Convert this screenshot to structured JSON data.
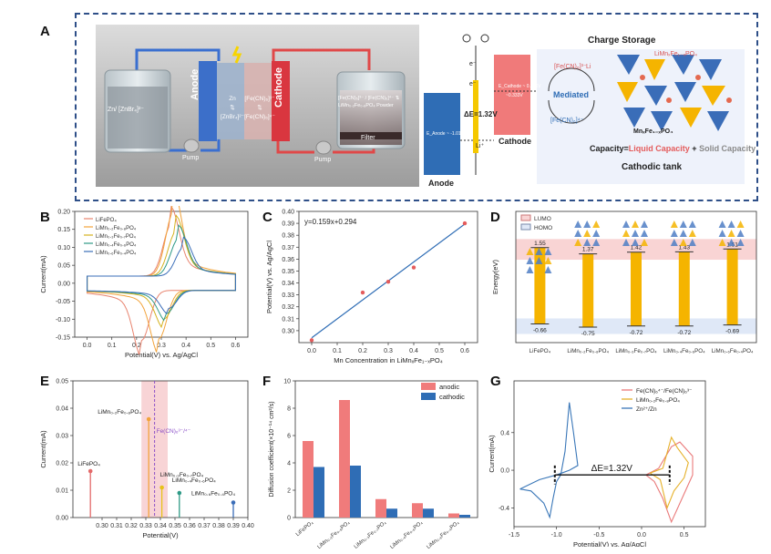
{
  "letters": {
    "a": "A",
    "b": "B",
    "c": "C",
    "d": "D",
    "e": "E",
    "f": "F",
    "g": "G"
  },
  "panel_a": {
    "left": {
      "anode_tank_label": "Zn/ [ZnBr₄]²⁻",
      "anode": "Anode",
      "cathode": "Cathode",
      "anode_membrane": "Zn\n⇅\n[ZnBr₄]²⁻",
      "cathode_membrane": "[Fe(CN)₆]³⁻\n⇅\n[Fe(CN)₆]⁴⁻",
      "tank_right_text": "[Fe(CN)₆]³⁻ / [Fe(CN)₆]⁴⁻ ⇅ LiMn₀.₂Fe₀.₈PO₄ Powder",
      "filter": "Filter",
      "pump_left": "Pump",
      "pump_right": "Pump"
    },
    "right": {
      "title": "Charge Storage",
      "anode": "Anode",
      "cathode": "Cathode",
      "e_anode": "E_Anode ~ -1.01V",
      "e_cathode1": "E_Cathode ~ 0.316V",
      "e_cathode2": "~0.333V",
      "delta_e": "ΔE=1.32V",
      "e_minus_1": "e⁻",
      "e_minus_2": "e⁻",
      "li_plus": "Li⁺",
      "li_label": "Li",
      "ferri": "[Fe(CN)₆]³⁻",
      "ferro": "[Fe(CN)₆]⁴⁻",
      "mediated": "Mediated",
      "lmfp_top": "LiMnₓFe₁₋ₓPO₄",
      "lmfp_bottom": "MnₓFe₁₋ₓPO₄",
      "capacity_prefix": "Capacity=",
      "capacity_liquid": "Liquid Capacity",
      "capacity_plus": " + ",
      "capacity_solid": "Solid Capacity",
      "tank_caption": "Cathodic tank",
      "colors": {
        "anode": "#2f6db5",
        "cathode": "#f07a7a",
        "mediated_bg": "#eef2fb",
        "frame": "#2e4f88"
      }
    }
  },
  "chart_data": [
    {
      "panel": "B",
      "type": "line",
      "xlabel": "Potential(V) vs. Ag/AgCl",
      "ylabel": "Current(mA)",
      "xlim": [
        -0.05,
        0.65
      ],
      "ylim": [
        -0.15,
        0.2
      ],
      "xticks": [
        "0.0",
        "0.1",
        "0.2",
        "0.3",
        "0.4",
        "0.5",
        "0.6"
      ],
      "yticks": [
        "-0.15",
        "-0.10",
        "-0.05",
        "0.00",
        "0.05",
        "0.10",
        "0.15",
        "0.20"
      ],
      "legend": [
        "LiFePO₄",
        "LiMn₀.₂Fe₀.₈PO₄",
        "LiMn₀.₃Fe₀.₇PO₄",
        "LiMn₀.₄Fe₀.₆PO₄",
        "LiMn₀.₆Fe₀.₄PO₄"
      ],
      "series": [
        {
          "name": "LiFePO₄",
          "color": "#e8836e",
          "anodic_peak": [
            0.34,
            0.143
          ],
          "cathodic_peak": [
            0.22,
            -0.14
          ]
        },
        {
          "name": "LiMn₀.₂Fe₀.₈PO₄",
          "color": "#f2a33a",
          "anodic_peak": [
            0.35,
            0.18
          ],
          "cathodic_peak": [
            0.29,
            -0.135
          ]
        },
        {
          "name": "LiMn₀.₃Fe₀.₇PO₄",
          "color": "#d4b21f",
          "anodic_peak": [
            0.36,
            0.125
          ],
          "cathodic_peak": [
            0.31,
            -0.08
          ]
        },
        {
          "name": "LiMn₀.₄Fe₀.₆PO₄",
          "color": "#2e9a86",
          "anodic_peak": [
            0.37,
            0.105
          ],
          "cathodic_peak": [
            0.32,
            -0.065
          ]
        },
        {
          "name": "LiMn₀.₆Fe₀.₄PO₄",
          "color": "#3a6db8",
          "anodic_peak": [
            0.39,
            0.08
          ],
          "cathodic_peak": [
            0.33,
            -0.05
          ]
        }
      ]
    },
    {
      "panel": "C",
      "type": "scatter",
      "xlabel": "Mn Concentration in LiMnₓFe₁₋ₓPO₄",
      "ylabel": "Potential(V) vs. Ag/AgCl",
      "xlim": [
        -0.05,
        0.65
      ],
      "ylim": [
        0.29,
        0.4
      ],
      "xticks": [
        "0.0",
        "0.1",
        "0.2",
        "0.3",
        "0.4",
        "0.5",
        "0.6"
      ],
      "yticks": [
        "0.30",
        "0.31",
        "0.32",
        "0.33",
        "0.34",
        "0.35",
        "0.36",
        "0.37",
        "0.38",
        "0.39",
        "0.40"
      ],
      "annotation": "y=0.159x+0.294",
      "x": [
        0,
        0.2,
        0.3,
        0.4,
        0.6
      ],
      "y": [
        0.292,
        0.332,
        0.341,
        0.353,
        0.39
      ],
      "fit": {
        "slope": 0.159,
        "intercept": 0.294
      },
      "colors": {
        "points": "#e45c5c",
        "line": "#2f6db5"
      }
    },
    {
      "panel": "D",
      "type": "bar",
      "ylabel": "Energy(eV)",
      "legend": [
        "LUMO",
        "HOMO"
      ],
      "categories": [
        "LiFePO₄",
        "LiMn₀.₂Fe₀.₈PO₄",
        "LiMn₀.₃Fe₀.₇PO₄",
        "LiMn₀.₄Fe₀.₆PO₄",
        "LiMn₀.₆Fe₀.₄PO₄"
      ],
      "lumo": [
        1.55,
        1.37,
        1.42,
        1.43,
        1.51
      ],
      "homo": [
        -0.66,
        -0.75,
        -0.72,
        -0.72,
        -0.69
      ],
      "lumo_labels": [
        "1.55",
        "1.37",
        "1.42",
        "1.43",
        "1.51"
      ],
      "homo_labels": [
        "-0.66",
        "-0.75",
        "-0.72",
        "-0.72",
        "-0.69"
      ],
      "colors": {
        "bar": "#f5b400",
        "lumo_band": "#f9d4d4",
        "homo_band": "#dfe8f7"
      }
    },
    {
      "panel": "E",
      "type": "scatter",
      "xlabel": "Potential(V)",
      "ylabel": "Current(mA)",
      "xlim": [
        0.28,
        0.4
      ],
      "ylim": [
        0,
        0.05
      ],
      "xticks": [
        "0.30",
        "0.31",
        "0.32",
        "0.33",
        "0.34",
        "0.35",
        "0.36",
        "0.37",
        "0.38",
        "0.39",
        "0.40"
      ],
      "yticks": [
        "0.00",
        "0.01",
        "0.02",
        "0.03",
        "0.04",
        "0.05"
      ],
      "ref_label": "Fe(CN)₆³⁻/⁴⁻",
      "ref_x": 0.336,
      "points": [
        {
          "name": "LiFePO₄",
          "x": 0.292,
          "y": 0.017,
          "color": "#e46a6a"
        },
        {
          "name": "LiMn₀.₂Fe₀.₈PO₄",
          "x": 0.332,
          "y": 0.036,
          "color": "#f2a33a"
        },
        {
          "name": "LiMn₀.₃Fe₀.₇PO₄",
          "x": 0.341,
          "y": 0.011,
          "color": "#e6c21a"
        },
        {
          "name": "LiMn₀.₄Fe₀.₆PO₄",
          "x": 0.353,
          "y": 0.009,
          "color": "#2e9a86"
        },
        {
          "name": "LiMn₀.₆Fe₀.₄PO₄",
          "x": 0.39,
          "y": 0.0055,
          "color": "#3a6db8"
        }
      ]
    },
    {
      "panel": "F",
      "type": "bar",
      "ylabel": "Diffusion coefficient(×10⁻¹⁴ cm²/s)",
      "ylim": [
        0,
        10
      ],
      "yticks": [
        "0",
        "2",
        "4",
        "6",
        "8",
        "10"
      ],
      "categories": [
        "LiFePO₄",
        "LiMn₀.₂Fe₀.₈PO₄",
        "LiMn₀.₃Fe₀.₇PO₄",
        "LiMn₀.₄Fe₀.₆PO₄",
        "LiMn₀.₆Fe₀.₄PO₄"
      ],
      "series": [
        {
          "name": "anodic",
          "color": "#f07b7b",
          "values": [
            5.6,
            8.6,
            1.35,
            1.05,
            0.3
          ]
        },
        {
          "name": "cathodic",
          "color": "#2f6db5",
          "values": [
            3.7,
            3.8,
            0.65,
            0.65,
            0.2
          ]
        }
      ]
    },
    {
      "panel": "G",
      "type": "line",
      "xlabel": "Potential(V) vs. Ag/AgCl",
      "ylabel": "Current(mA)",
      "xlim": [
        -1.5,
        0.75
      ],
      "ylim": [
        -0.6,
        0.95
      ],
      "xticks": [
        "-1.5",
        "-1.0",
        "-0.5",
        "0.0",
        "0.5"
      ],
      "yticks": [
        "-0.4",
        "0.0",
        "0.4"
      ],
      "legend": [
        "Fe(CN)₆⁴⁻/Fe(CN)₆³⁻",
        "LiMn₀.₂Fe₀.₈PO₄",
        "Zn²⁺/Zn"
      ],
      "annotation": "ΔE=1.32V",
      "series": [
        {
          "name": "Fe(CN)₆⁴⁻/Fe(CN)₆³⁻",
          "color": "#ea7a7a"
        },
        {
          "name": "LiMn₀.₂Fe₀.₈PO₄",
          "color": "#e6b12a"
        },
        {
          "name": "Zn²⁺/Zn",
          "color": "#3a77b8"
        }
      ]
    }
  ]
}
